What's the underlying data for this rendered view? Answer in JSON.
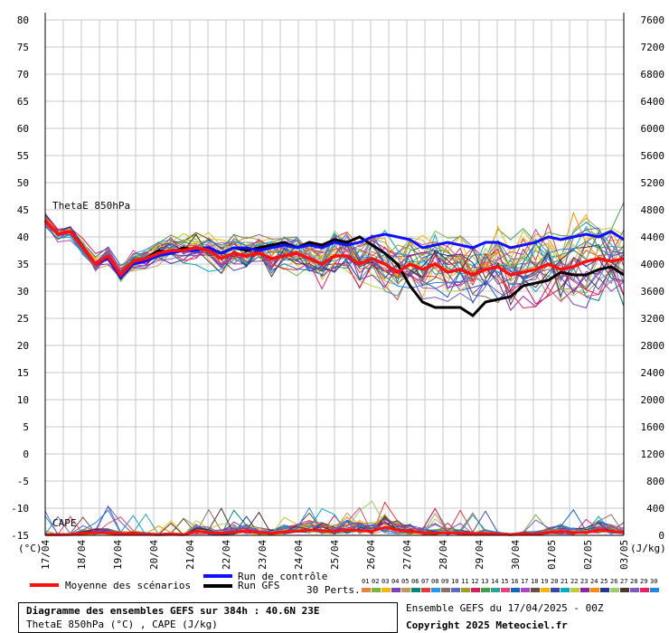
{
  "chart_data": {
    "type": "line",
    "title": "Diagramme des ensembles GEFS sur 384h : 40.6N 23E",
    "subtitle": "ThetaE 850hPa (°C) , CAPE (J/kg)",
    "left_axis": {
      "unit": "(°C)",
      "ticks": [
        80,
        75,
        70,
        65,
        60,
        55,
        50,
        45,
        40,
        35,
        30,
        25,
        20,
        15,
        10,
        5,
        0,
        -5,
        -10,
        -15
      ],
      "range": [
        -15,
        80
      ]
    },
    "right_axis": {
      "unit": "(J/kg)",
      "ticks": [
        7600,
        7200,
        6800,
        6400,
        6000,
        5600,
        5200,
        4800,
        4400,
        4000,
        3600,
        3200,
        2800,
        2400,
        2000,
        1600,
        1200,
        800,
        400,
        0
      ],
      "range": [
        0,
        7600
      ]
    },
    "x_ticks": [
      "17/04",
      "18/04",
      "19/04",
      "20/04",
      "21/04",
      "22/04",
      "23/04",
      "24/04",
      "25/04",
      "26/04",
      "27/04",
      "28/04",
      "29/04",
      "30/04",
      "01/05",
      "02/05",
      "03/05"
    ],
    "grid": true,
    "panel_labels": {
      "thetae": "ThetaE 850hPa",
      "cape": "CAPE"
    },
    "series": [
      {
        "name": "Moyenne des scénarios",
        "color": "#ff1010",
        "values": [
          43,
          40.5,
          41,
          38,
          35,
          36.5,
          33,
          35.5,
          36,
          37,
          37.5,
          37.5,
          38,
          37.5,
          36,
          37,
          36.5,
          37,
          36,
          36.5,
          37,
          36,
          35,
          36.5,
          36.5,
          35,
          36,
          35,
          33.5,
          35,
          34,
          35,
          33.5,
          34,
          33,
          34,
          34.5,
          33,
          33.5,
          34,
          35,
          34,
          34.5,
          35.5,
          36,
          35.5,
          36
        ]
      },
      {
        "name": "Run de contrôle",
        "color": "#1010ff",
        "values": [
          43,
          40.5,
          41,
          38,
          35,
          36,
          32.5,
          35,
          35.5,
          36.5,
          37,
          37.5,
          37.5,
          38,
          37,
          38,
          38,
          37.5,
          38,
          38.5,
          38,
          38.5,
          38,
          39,
          38.5,
          39,
          40,
          40.5,
          40,
          39.5,
          38,
          38.5,
          39,
          38.5,
          38,
          39,
          39,
          38,
          38.5,
          39,
          40,
          39.5,
          40,
          40.5,
          40,
          41,
          39.5
        ]
      },
      {
        "name": "Run GFS",
        "color": "#000000",
        "values": [
          43,
          40.5,
          41,
          38,
          35,
          36,
          32.5,
          35,
          36,
          37.5,
          37,
          38,
          37.5,
          38,
          37,
          38,
          37.5,
          38,
          38.5,
          39,
          38,
          39,
          38.5,
          39.5,
          39,
          40,
          38.5,
          37,
          35,
          31,
          28,
          27,
          27,
          27,
          25.5,
          28,
          28.5,
          29,
          31,
          31.5,
          32,
          33.5,
          33,
          33,
          34,
          34.5,
          33
        ]
      }
    ],
    "cape_mean": [
      10,
      10,
      12,
      30,
      40,
      35,
      20,
      25,
      15,
      10,
      15,
      10,
      60,
      40,
      30,
      50,
      60,
      40,
      30,
      50,
      60,
      80,
      70,
      60,
      80,
      70,
      60,
      120,
      80,
      60,
      40,
      30,
      40,
      30,
      20,
      30,
      20,
      10,
      20,
      20,
      40,
      60,
      40,
      40,
      80,
      60,
      40
    ],
    "members_count": "30 Perts.",
    "members": [
      "01",
      "02",
      "03",
      "04",
      "05",
      "06",
      "07",
      "08",
      "09",
      "10",
      "11",
      "12",
      "13",
      "14",
      "15",
      "16",
      "17",
      "18",
      "19",
      "20",
      "21",
      "22",
      "23",
      "24",
      "25",
      "26",
      "27",
      "28",
      "29",
      "30"
    ],
    "member_colors": [
      "#e8823a",
      "#7cb342",
      "#f5b800",
      "#7b3fbf",
      "#c29a5b",
      "#00897b",
      "#e53935",
      "#2196f3",
      "#8d6e63",
      "#5c6bc0",
      "#9e9d24",
      "#d81b60",
      "#43a047",
      "#26a69a",
      "#ec407a",
      "#1565c0",
      "#ab47bc",
      "#6d4c41",
      "#ffb300",
      "#3949ab",
      "#00acc1",
      "#c0ca33",
      "#8e24aa",
      "#fb8c00",
      "#283593",
      "#9ccc65",
      "#4e342e",
      "#7e57c2",
      "#e91e63",
      "#1e88e5"
    ]
  },
  "legend": {
    "mean_label": "Moyenne des scénarios",
    "control_label": "Run de contrôle",
    "gfs_label": "Run GFS"
  },
  "footer": {
    "title": "Diagramme des ensembles GEFS sur 384h : 40.6N 23E",
    "subtitle": "ThetaE 850hPa (°C) , CAPE (J/kg)",
    "ensemble": "Ensemble GEFS du 17/04/2025 - 00Z",
    "copyright": "Copyright 2025 Meteociel.fr"
  }
}
